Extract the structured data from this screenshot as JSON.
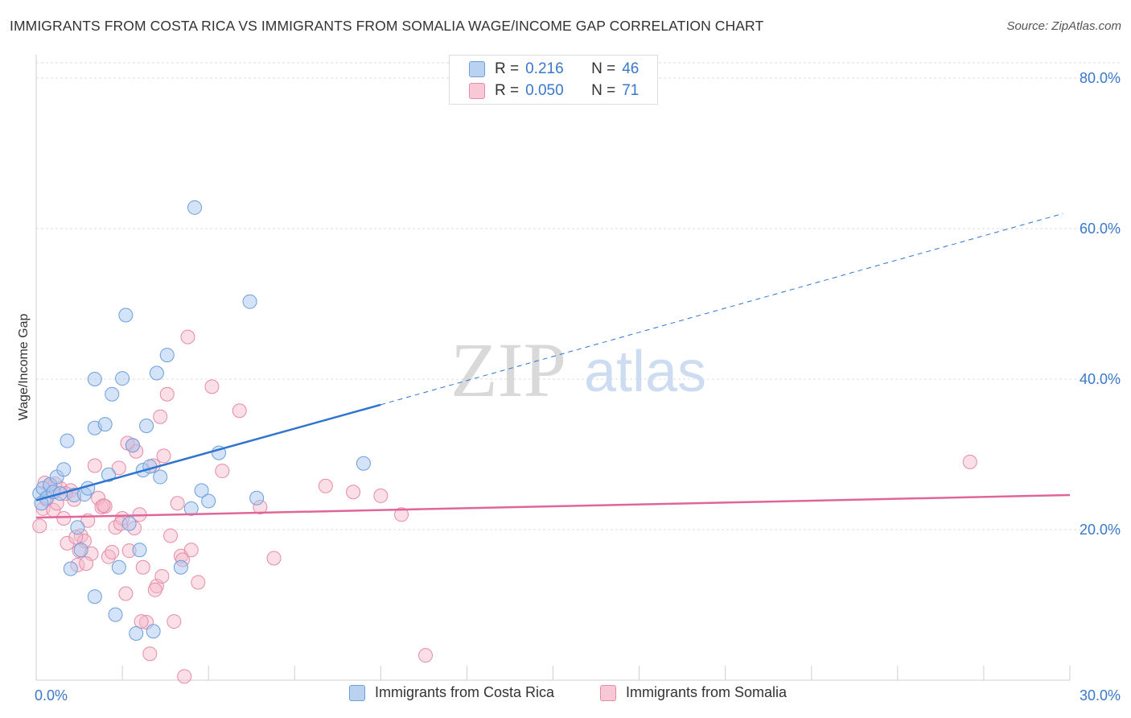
{
  "title": "IMMIGRANTS FROM COSTA RICA VS IMMIGRANTS FROM SOMALIA WAGE/INCOME GAP CORRELATION CHART",
  "source": "Source: ZipAtlas.com",
  "watermark": {
    "zip": "ZIP",
    "atlas": "atlas"
  },
  "legend": {
    "rows": [
      {
        "r_label": "R =",
        "r_value": "0.216",
        "n_label": "N =",
        "n_value": "46"
      },
      {
        "r_label": "R =",
        "r_value": "0.050",
        "n_label": "N =",
        "n_value": "71"
      }
    ]
  },
  "colors": {
    "blue_fill": "#a9c8ef",
    "blue_stroke": "#6c9fdc",
    "blue_line": "#2f75d0",
    "pink_fill": "#f5b8ca",
    "pink_stroke": "#e88aa8",
    "pink_line": "#e0669a",
    "axis_text": "#3a78c9",
    "grid": "#dddddd"
  },
  "chart_data": {
    "type": "scatter",
    "title": "IMMIGRANTS FROM COSTA RICA VS IMMIGRANTS FROM SOMALIA WAGE/INCOME GAP CORRELATION CHART",
    "xlabel": "",
    "ylabel": "Wage/Income Gap",
    "xlim": [
      0,
      30
    ],
    "ylim": [
      0,
      80
    ],
    "x_tick_labels": [
      "0.0%",
      "30.0%"
    ],
    "y_ticks": [
      20,
      40,
      60,
      80
    ],
    "y_tick_labels": [
      "20.0%",
      "40.0%",
      "60.0%",
      "80.0%"
    ],
    "grid": true,
    "series": [
      {
        "name": "Immigrants from Costa Rica",
        "color": "#6c9fdc",
        "r": 0.216,
        "n": 46,
        "trend": {
          "x0": 0,
          "y0": 23.9,
          "x1": 10,
          "y1": 36.6,
          "dash_to_x": 29.8,
          "dash_to_y": 62.0
        },
        "points": [
          [
            0.1,
            24.8
          ],
          [
            0.2,
            25.5
          ],
          [
            0.3,
            24.2
          ],
          [
            0.4,
            26.0
          ],
          [
            0.5,
            25.0
          ],
          [
            0.6,
            27.0
          ],
          [
            0.7,
            24.8
          ],
          [
            0.8,
            28.0
          ],
          [
            0.9,
            31.8
          ],
          [
            1.0,
            14.8
          ],
          [
            1.1,
            24.6
          ],
          [
            1.2,
            20.3
          ],
          [
            1.3,
            17.3
          ],
          [
            1.4,
            24.7
          ],
          [
            1.5,
            25.5
          ],
          [
            1.7,
            11.1
          ],
          [
            1.7,
            33.5
          ],
          [
            1.7,
            40.0
          ],
          [
            2.0,
            34.0
          ],
          [
            2.1,
            27.3
          ],
          [
            2.2,
            38.0
          ],
          [
            2.3,
            8.7
          ],
          [
            2.4,
            15.0
          ],
          [
            2.5,
            40.1
          ],
          [
            2.6,
            48.5
          ],
          [
            2.7,
            20.8
          ],
          [
            2.8,
            31.2
          ],
          [
            2.9,
            6.2
          ],
          [
            3.0,
            17.3
          ],
          [
            3.1,
            27.9
          ],
          [
            3.2,
            33.8
          ],
          [
            3.3,
            28.4
          ],
          [
            3.4,
            6.5
          ],
          [
            3.5,
            40.8
          ],
          [
            3.6,
            27.0
          ],
          [
            3.8,
            43.2
          ],
          [
            4.2,
            15.0
          ],
          [
            4.5,
            22.8
          ],
          [
            4.6,
            62.8
          ],
          [
            4.8,
            25.2
          ],
          [
            5.0,
            23.8
          ],
          [
            5.3,
            30.2
          ],
          [
            6.2,
            50.3
          ],
          [
            6.4,
            24.2
          ],
          [
            9.5,
            28.8
          ],
          [
            0.15,
            23.5
          ]
        ]
      },
      {
        "name": "Immigrants from Somalia",
        "color": "#e88aa8",
        "r": 0.05,
        "n": 71,
        "trend": {
          "x0": 0,
          "y0": 21.6,
          "x1": 30,
          "y1": 24.6
        },
        "points": [
          [
            0.1,
            20.5
          ],
          [
            0.2,
            22.8
          ],
          [
            0.3,
            24.0
          ],
          [
            0.4,
            25.8
          ],
          [
            0.5,
            22.6
          ],
          [
            0.6,
            23.5
          ],
          [
            0.7,
            25.5
          ],
          [
            0.8,
            21.5
          ],
          [
            0.9,
            18.2
          ],
          [
            1.0,
            25.2
          ],
          [
            1.1,
            24.0
          ],
          [
            1.2,
            15.3
          ],
          [
            1.3,
            19.2
          ],
          [
            1.4,
            18.5
          ],
          [
            1.5,
            21.2
          ],
          [
            1.6,
            16.8
          ],
          [
            1.7,
            28.5
          ],
          [
            1.8,
            24.2
          ],
          [
            1.9,
            23.0
          ],
          [
            2.0,
            23.1
          ],
          [
            2.1,
            16.4
          ],
          [
            2.2,
            17.0
          ],
          [
            2.3,
            20.3
          ],
          [
            2.4,
            28.2
          ],
          [
            2.5,
            21.5
          ],
          [
            2.6,
            11.5
          ],
          [
            2.7,
            17.2
          ],
          [
            2.8,
            31.2
          ],
          [
            2.9,
            30.4
          ],
          [
            3.0,
            22.0
          ],
          [
            3.1,
            15.0
          ],
          [
            3.2,
            7.7
          ],
          [
            3.3,
            3.5
          ],
          [
            3.4,
            28.5
          ],
          [
            3.5,
            12.5
          ],
          [
            3.6,
            35.0
          ],
          [
            3.7,
            29.8
          ],
          [
            3.8,
            38.0
          ],
          [
            3.9,
            19.2
          ],
          [
            4.0,
            7.8
          ],
          [
            4.1,
            23.5
          ],
          [
            4.2,
            16.5
          ],
          [
            4.3,
            0.5
          ],
          [
            4.4,
            45.6
          ],
          [
            4.5,
            17.3
          ],
          [
            4.7,
            13.0
          ],
          [
            5.1,
            39.0
          ],
          [
            5.4,
            27.8
          ],
          [
            5.9,
            35.8
          ],
          [
            6.5,
            23.0
          ],
          [
            6.9,
            16.2
          ],
          [
            8.4,
            25.8
          ],
          [
            9.2,
            25.0
          ],
          [
            10.0,
            24.5
          ],
          [
            10.6,
            22.0
          ],
          [
            11.3,
            3.3
          ],
          [
            27.1,
            29.0
          ],
          [
            0.25,
            26.2
          ],
          [
            0.55,
            26.1
          ],
          [
            1.25,
            17.2
          ],
          [
            2.45,
            20.8
          ],
          [
            3.05,
            7.8
          ],
          [
            1.95,
            23.2
          ],
          [
            3.45,
            12.0
          ],
          [
            2.85,
            20.2
          ],
          [
            1.45,
            15.5
          ],
          [
            0.85,
            24.8
          ],
          [
            4.25,
            16.0
          ],
          [
            3.65,
            13.8
          ],
          [
            1.15,
            19.0
          ],
          [
            2.65,
            31.5
          ]
        ]
      }
    ]
  },
  "bottom_legend": [
    {
      "label": "Immigrants from Costa Rica"
    },
    {
      "label": "Immigrants from Somalia"
    }
  ]
}
